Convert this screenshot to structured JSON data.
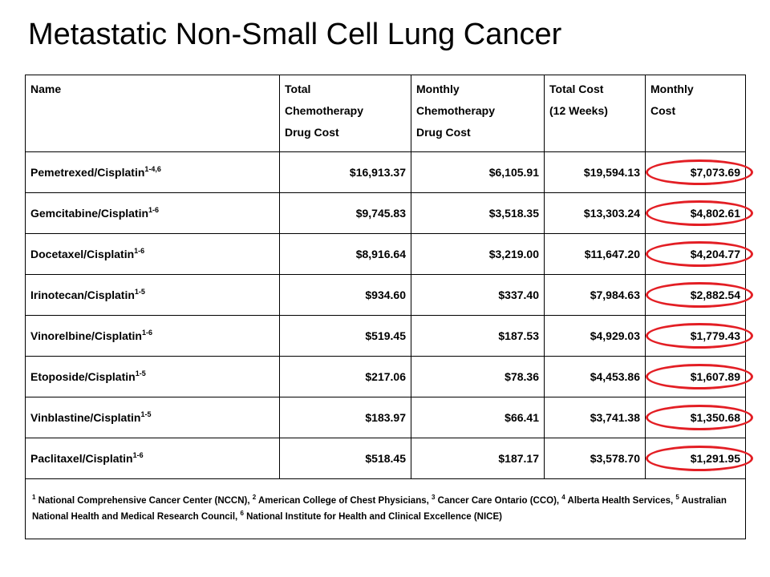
{
  "title": "Metastatic Non-Small Cell Lung Cancer",
  "table": {
    "headers": {
      "name": [
        "Name"
      ],
      "total_chemo": [
        "Total",
        "Chemotherapy",
        "Drug Cost"
      ],
      "monthly_chemo": [
        "Monthly",
        "Chemotherapy",
        "Drug Cost"
      ],
      "total_cost": [
        "Total Cost",
        "(12 Weeks)"
      ],
      "monthly_cost": [
        "Monthly",
        "Cost"
      ]
    },
    "rows": [
      {
        "name": "Pemetrexed/Cisplatin",
        "sup": "1-4,6",
        "total_chemo": "$16,913.37",
        "monthly_chemo": "$6,105.91",
        "total_cost": "$19,594.13",
        "monthly_cost": "$7,073.69"
      },
      {
        "name": "Gemcitabine/Cisplatin",
        "sup": "1-6",
        "total_chemo": "$9,745.83",
        "monthly_chemo": "$3,518.35",
        "total_cost": "$13,303.24",
        "monthly_cost": "$4,802.61"
      },
      {
        "name": "Docetaxel/Cisplatin",
        "sup": "1-6",
        "total_chemo": "$8,916.64",
        "monthly_chemo": "$3,219.00",
        "total_cost": "$11,647.20",
        "monthly_cost": "$4,204.77"
      },
      {
        "name": "Irinotecan/Cisplatin",
        "sup": "1-5",
        "total_chemo": "$934.60",
        "monthly_chemo": "$337.40",
        "total_cost": "$7,984.63",
        "monthly_cost": "$2,882.54"
      },
      {
        "name": "Vinorelbine/Cisplatin",
        "sup": "1-6",
        "total_chemo": "$519.45",
        "monthly_chemo": "$187.53",
        "total_cost": "$4,929.03",
        "monthly_cost": "$1,779.43"
      },
      {
        "name": "Etoposide/Cisplatin",
        "sup": "1-5",
        "total_chemo": "$217.06",
        "monthly_chemo": "$78.36",
        "total_cost": "$4,453.86",
        "monthly_cost": "$1,607.89"
      },
      {
        "name": "Vinblastine/Cisplatin",
        "sup": "1-5",
        "total_chemo": "$183.97",
        "monthly_chemo": "$66.41",
        "total_cost": "$3,741.38",
        "monthly_cost": "$1,350.68"
      },
      {
        "name": "Paclitaxel/Cisplatin",
        "sup": "1-6",
        "total_chemo": "$518.45",
        "monthly_chemo": "$187.17",
        "total_cost": "$3,578.70",
        "monthly_cost": "$1,291.95"
      }
    ],
    "footnotes": [
      {
        "sup": "1",
        "text": " National Comprehensive Cancer Center (NCCN), "
      },
      {
        "sup": "2",
        "text": " American College of Chest Physicians, "
      },
      {
        "sup": "3",
        "text": " Cancer Care Ontario (CCO), "
      },
      {
        "sup": "4",
        "text": " Alberta Health Services, "
      },
      {
        "sup": "5",
        "text": " Australian National Health and Medical Research Council, "
      },
      {
        "sup": "6",
        "text": " National Institute for Health and Clinical Excellence (NICE)"
      }
    ]
  },
  "colors": {
    "highlight_circle": "#e31e24",
    "border": "#000000"
  }
}
